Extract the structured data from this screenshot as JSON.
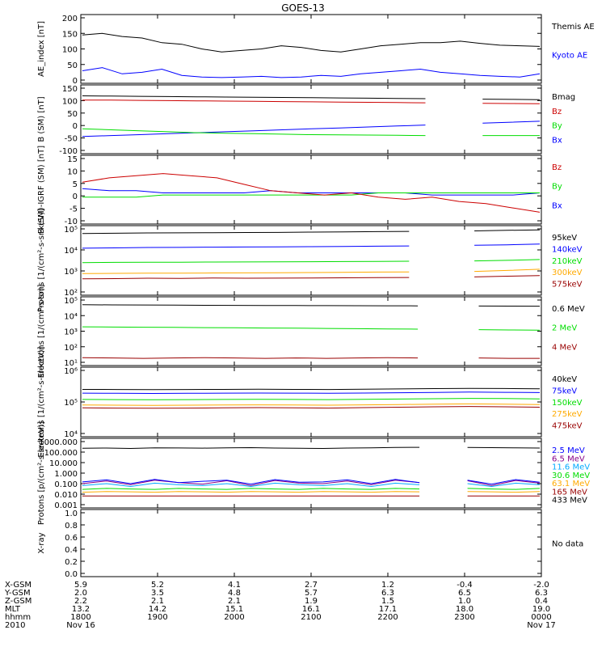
{
  "title": "GOES-13",
  "colors": {
    "black": "#000000",
    "blue": "#0000ff",
    "red": "#cc0000",
    "green": "#00dd00",
    "orange": "#ffaa00",
    "darkred": "#990000",
    "cyan": "#00aaff",
    "purple": "#880088"
  },
  "chart_data": [
    {
      "type": "line",
      "ylabel": "AE_index [nT]",
      "yticks": [
        "0",
        "50",
        "100",
        "150",
        "200"
      ],
      "ylim": [
        0,
        200
      ],
      "series": [
        {
          "name": "Kyoto AE",
          "color": "blue",
          "values": [
            30,
            40,
            20,
            25,
            35,
            15,
            10,
            8,
            10,
            12,
            8,
            10,
            15,
            12,
            20,
            25,
            30,
            35,
            25,
            20,
            15,
            12,
            10,
            20
          ]
        },
        {
          "name": "Themis AE",
          "color": "black",
          "values": [
            145,
            150,
            140,
            135,
            120,
            115,
            100,
            90,
            95,
            100,
            110,
            105,
            95,
            90,
            100,
            110,
            115,
            120,
            120,
            125,
            118,
            112,
            110,
            108
          ]
        }
      ]
    },
    {
      "type": "line",
      "ylabel": "B (SM) [nT]",
      "yticks": [
        "-100",
        "-50",
        "0",
        "50",
        "100",
        "150"
      ],
      "ylim": [
        -110,
        150
      ],
      "series": [
        {
          "name": "Bx",
          "color": "blue",
          "values": [
            -52,
            -48,
            -44,
            -40,
            -36,
            -32,
            -28,
            -24,
            -20,
            -16,
            -12,
            -8,
            -4,
            0,
            4,
            8,
            12
          ]
        },
        {
          "name": "By",
          "color": "green",
          "values": [
            -20,
            -24,
            -28,
            -32,
            -36,
            -38,
            -40,
            -42,
            -44,
            -45,
            -46,
            -47,
            -48,
            -48,
            -48,
            -48,
            -48
          ]
        },
        {
          "name": "Bz",
          "color": "red",
          "values": [
            100,
            100,
            99,
            98,
            97,
            96,
            95,
            94,
            93,
            92,
            91,
            90,
            89,
            88,
            87,
            86,
            85
          ]
        },
        {
          "name": "Bmag",
          "color": "black",
          "values": [
            118,
            117,
            116,
            115,
            114,
            113,
            112,
            111,
            110,
            109,
            108,
            107,
            106,
            105,
            104,
            103,
            102
          ]
        }
      ]
    },
    {
      "type": "line",
      "ylabel": "B (SM)-IGRF (SM) [nT]",
      "yticks": [
        "-10",
        "-5",
        "0",
        "5",
        "10",
        "15"
      ],
      "ylim": [
        -12,
        17
      ],
      "series": [
        {
          "name": "Bx",
          "color": "blue",
          "values": [
            3,
            2,
            2,
            1,
            1,
            1,
            1,
            2,
            1,
            1,
            1,
            1,
            1,
            0,
            0,
            0,
            0,
            1
          ]
        },
        {
          "name": "By",
          "color": "green",
          "values": [
            -1,
            -1,
            -1,
            0,
            0,
            0,
            0,
            0,
            0,
            0,
            0,
            1,
            1,
            1,
            1,
            1,
            1,
            1
          ]
        },
        {
          "name": "Bz",
          "color": "red",
          "values": [
            6,
            8,
            9,
            10,
            9,
            8,
            5,
            2,
            1,
            0,
            1,
            -1,
            -2,
            -1,
            -3,
            -4,
            -6,
            -8
          ]
        }
      ]
    },
    {
      "type": "line",
      "ylabel": "Protons [1/(cm²-s-sr-keV)]",
      "yticks": [
        "10²",
        "10³",
        "10⁴",
        "10⁵"
      ],
      "ylog": true,
      "ylim": [
        100,
        100000
      ],
      "series": [
        {
          "name": "575keV",
          "color": "darkred",
          "values": [
            420,
            430,
            450,
            440,
            460,
            450,
            455,
            460,
            470,
            480,
            490,
            500,
            520,
            560,
            600
          ]
        },
        {
          "name": "300keV",
          "color": "orange",
          "values": [
            750,
            770,
            790,
            780,
            800,
            810,
            820,
            840,
            860,
            880,
            900,
            920,
            950,
            1050,
            1200
          ]
        },
        {
          "name": "210keV",
          "color": "green",
          "values": [
            2500,
            2550,
            2600,
            2600,
            2650,
            2680,
            2700,
            2750,
            2800,
            2850,
            2900,
            2950,
            3000,
            3200,
            3500
          ]
        },
        {
          "name": "140keV",
          "color": "blue",
          "values": [
            12000,
            12500,
            13000,
            13200,
            13500,
            13800,
            14000,
            14200,
            14500,
            15000,
            15500,
            16000,
            16500,
            17500,
            19000
          ]
        },
        {
          "name": "95keV",
          "color": "black",
          "values": [
            60000,
            62000,
            64000,
            65000,
            66000,
            67000,
            68000,
            70000,
            72000,
            74000,
            76000,
            78000,
            80000,
            85000,
            90000
          ]
        }
      ]
    },
    {
      "type": "line",
      "ylabel": "Electrons [1/(cm²-s-sr)]",
      "yticks": [
        "10¹",
        "10²",
        "10³",
        "10⁴",
        "10⁵"
      ],
      "ylog": true,
      "ylim": [
        10,
        100000
      ],
      "series": [
        {
          "name": "4 MeV",
          "color": "darkred",
          "values": [
            20,
            19,
            18,
            19,
            20,
            19,
            18,
            19,
            18,
            19,
            20,
            19,
            18,
            19,
            18,
            18
          ]
        },
        {
          "name": "2 MeV",
          "color": "green",
          "values": [
            1900,
            1850,
            1800,
            1750,
            1700,
            1650,
            1600,
            1550,
            1500,
            1450,
            1400,
            1350,
            1300,
            1250,
            1200,
            1150
          ]
        },
        {
          "name": "0.6 MeV",
          "color": "black",
          "values": [
            50000,
            49000,
            48000,
            47000,
            46000,
            45500,
            45000,
            44500,
            44000,
            43500,
            43000,
            42500,
            42000,
            41500,
            41000,
            40500
          ]
        }
      ]
    },
    {
      "type": "line",
      "ylabel": "Electrons [1/(cm²-s-sr-keV)]",
      "yticks": [
        "10⁴",
        "10⁵",
        "10⁶"
      ],
      "ylog": true,
      "ylim": [
        10000,
        1000000
      ],
      "series": [
        {
          "name": "475keV",
          "color": "darkred",
          "values": [
            65000,
            64000,
            63000,
            64000,
            65000,
            66000,
            65000,
            64000,
            66000,
            68000,
            70000,
            72000,
            70000,
            68000
          ]
        },
        {
          "name": "275keV",
          "color": "orange",
          "values": [
            80000,
            79000,
            78000,
            79000,
            80000,
            81000,
            80000,
            79000,
            81000,
            83000,
            85000,
            87000,
            85000,
            83000
          ]
        },
        {
          "name": "150keV",
          "color": "green",
          "values": [
            120000,
            119000,
            118000,
            119000,
            120000,
            121000,
            120000,
            119000,
            121000,
            124000,
            127000,
            130000,
            128000,
            125000
          ]
        },
        {
          "name": "75keV",
          "color": "blue",
          "values": [
            190000,
            188000,
            186000,
            188000,
            190000,
            192000,
            190000,
            188000,
            192000,
            196000,
            200000,
            205000,
            202000,
            198000
          ]
        },
        {
          "name": "40keV",
          "color": "black",
          "values": [
            250000,
            248000,
            246000,
            248000,
            250000,
            252000,
            250000,
            248000,
            252000,
            258000,
            265000,
            270000,
            266000,
            262000
          ]
        }
      ]
    },
    {
      "type": "line",
      "ylabel": "Protons [p/(cm²-s-sr-keV)]",
      "yticks": [
        "0.001",
        "0.010",
        "0.100",
        "1.000",
        "10.000",
        "100.000",
        "1000.000"
      ],
      "ylog": true,
      "ylim": [
        0.0005,
        2000
      ],
      "series": [
        {
          "name": "433 MeV",
          "color": "black",
          "values": [
            400,
            420,
            380,
            450,
            430,
            410,
            440,
            460,
            420,
            400,
            380,
            420,
            450,
            480,
            500,
            520,
            480,
            460,
            440,
            420
          ]
        },
        {
          "name": "165 MeV",
          "color": "darkred",
          "values": [
            0.004,
            0.004,
            0.004,
            0.004,
            0.004,
            0.004,
            0.004,
            0.004,
            0.004,
            0.004,
            0.004,
            0.004,
            0.004,
            0.004,
            0.004,
            0.004,
            0.004,
            0.004,
            0.004,
            0.004
          ]
        },
        {
          "name": "63.1 MeV",
          "color": "orange",
          "values": [
            0.01,
            0.012,
            0.011,
            0.01,
            0.012,
            0.011,
            0.01,
            0.012,
            0.011,
            0.01,
            0.012,
            0.011,
            0.01,
            0.012,
            0.011,
            0.01,
            0.012,
            0.011,
            0.01,
            0.012
          ]
        },
        {
          "name": "30.6 MeV",
          "color": "green",
          "values": [
            0.02,
            0.025,
            0.022,
            0.02,
            0.025,
            0.022,
            0.02,
            0.025,
            0.022,
            0.02,
            0.025,
            0.022,
            0.02,
            0.025,
            0.022,
            0.02,
            0.025,
            0.022,
            0.02,
            0.025
          ]
        },
        {
          "name": "11.6 MeV",
          "color": "cyan",
          "values": [
            0.05,
            0.08,
            0.04,
            0.09,
            0.06,
            0.05,
            0.08,
            0.04,
            0.09,
            0.06,
            0.05,
            0.08,
            0.04,
            0.09,
            0.06,
            0.05,
            0.08,
            0.04,
            0.09,
            0.06
          ]
        },
        {
          "name": "6.5 MeV",
          "color": "purple",
          "values": [
            0.08,
            0.15,
            0.06,
            0.18,
            0.1,
            0.07,
            0.16,
            0.05,
            0.17,
            0.09,
            0.08,
            0.15,
            0.06,
            0.18,
            0.1,
            0.07,
            0.16,
            0.05,
            0.17,
            0.09
          ]
        },
        {
          "name": "2.5 MeV",
          "color": "blue",
          "values": [
            0.12,
            0.2,
            0.08,
            0.22,
            0.1,
            0.14,
            0.18,
            0.07,
            0.21,
            0.11,
            0.12,
            0.2,
            0.08,
            0.22,
            0.1,
            0.14,
            0.18,
            0.07,
            0.21,
            0.11
          ]
        }
      ]
    },
    {
      "type": "line",
      "ylabel": "X-ray",
      "yticks": [
        "0.0",
        "0.2",
        "0.4",
        "0.6",
        "0.8",
        "1.0"
      ],
      "ylim": [
        0,
        1
      ],
      "series": [],
      "nodata_label": "No data"
    }
  ],
  "axis": {
    "row_labels": [
      "X-GSM",
      "Y-GSM",
      "Z-GSM",
      "MLT",
      "hhmm",
      "2010"
    ],
    "ticks": [
      {
        "values": [
          "5.9",
          "2.0",
          "2.2",
          "13.2",
          "1800",
          "Nov 16"
        ]
      },
      {
        "values": [
          "5.2",
          "3.5",
          "2.1",
          "14.2",
          "1900",
          ""
        ]
      },
      {
        "values": [
          "4.1",
          "4.8",
          "2.1",
          "15.1",
          "2000",
          ""
        ]
      },
      {
        "values": [
          "2.7",
          "5.7",
          "1.9",
          "16.1",
          "2100",
          ""
        ]
      },
      {
        "values": [
          "1.2",
          "6.3",
          "1.5",
          "17.1",
          "2200",
          ""
        ]
      },
      {
        "values": [
          "-0.4",
          "6.5",
          "1.0",
          "18.0",
          "2300",
          ""
        ]
      },
      {
        "values": [
          "-2.0",
          "6.3",
          "0.4",
          "19.0",
          "0000",
          "Nov 17"
        ]
      }
    ]
  }
}
